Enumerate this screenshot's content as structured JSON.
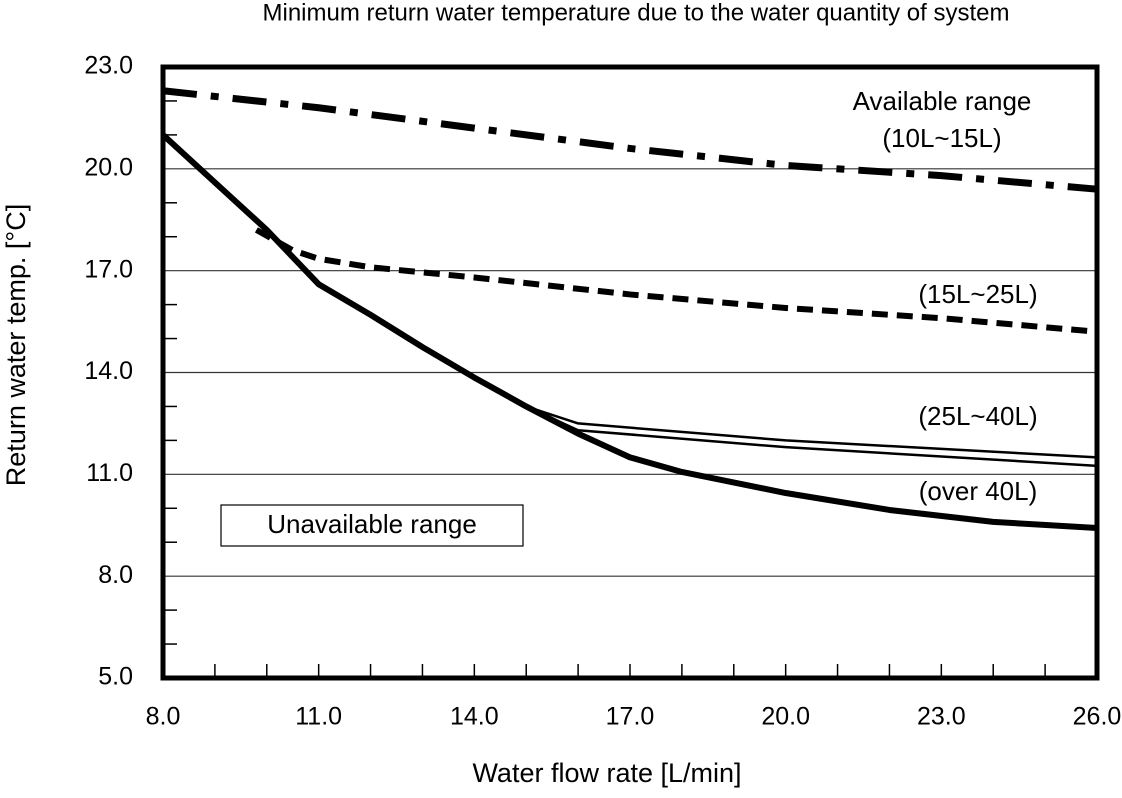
{
  "chart_data": {
    "type": "line",
    "title": "Minimum return water temperature due to the water quantity of system",
    "x_label": "Water flow rate [L/min]",
    "y_label": "Return water temp. [°C]",
    "xlim": [
      8.0,
      26.0
    ],
    "ylim": [
      5.0,
      23.0
    ],
    "xticks": [
      {
        "value": 8,
        "label": "8.0"
      },
      {
        "value": 11,
        "label": "11.0"
      },
      {
        "value": 14,
        "label": "14.0"
      },
      {
        "value": 17,
        "label": "17.0"
      },
      {
        "value": 20,
        "label": "20.0"
      },
      {
        "value": 23,
        "label": "23.0"
      },
      {
        "value": 26,
        "label": "26.0"
      }
    ],
    "yticks": [
      {
        "value": 5,
        "label": "5.0"
      },
      {
        "value": 8,
        "label": "8.0"
      },
      {
        "value": 11,
        "label": "11.0"
      },
      {
        "value": 14,
        "label": "14.0"
      },
      {
        "value": 17,
        "label": "17.0"
      },
      {
        "value": 20,
        "label": "20.0"
      },
      {
        "value": 23,
        "label": "23.0"
      }
    ],
    "grid": true,
    "annotations": [
      "Available range",
      "Unavailable range"
    ],
    "series": [
      {
        "name": "(10L~15L)",
        "color": "#000000",
        "style": "dashdot",
        "width": 7,
        "x": [
          8,
          11,
          14,
          17,
          20,
          23,
          26
        ],
        "values": [
          22.3,
          21.8,
          21.2,
          20.6,
          20.1,
          19.8,
          19.4
        ]
      },
      {
        "name": "(15L~25L)",
        "color": "#000000",
        "style": "dash",
        "width": 6,
        "x": [
          9.8,
          10.5,
          11,
          12,
          14,
          17,
          20,
          23,
          26
        ],
        "values": [
          18.2,
          17.6,
          17.35,
          17.1,
          16.8,
          16.3,
          15.9,
          15.6,
          15.2
        ]
      },
      {
        "name": "(25L~40L)",
        "color": "#000000",
        "style": "solid",
        "width": 2.5,
        "x": [
          15,
          16,
          20,
          26
        ],
        "values": [
          13.0,
          12.5,
          12.0,
          11.5
        ]
      },
      {
        "name": null,
        "color": "#000000",
        "style": "solid",
        "width": 2.5,
        "x": [
          15,
          16,
          20,
          26
        ],
        "values": [
          13.0,
          12.3,
          11.8,
          11.25
        ]
      },
      {
        "name": "(over 40L)",
        "color": "#000000",
        "style": "solid",
        "width": 6,
        "x": [
          8,
          9,
          10,
          11,
          12,
          13,
          14,
          15,
          16,
          17,
          18,
          20,
          22,
          24,
          26
        ],
        "values": [
          21.0,
          19.6,
          18.2,
          16.6,
          15.7,
          14.75,
          13.85,
          13.0,
          12.2,
          11.5,
          11.07,
          10.45,
          9.95,
          9.6,
          9.42
        ]
      }
    ]
  }
}
